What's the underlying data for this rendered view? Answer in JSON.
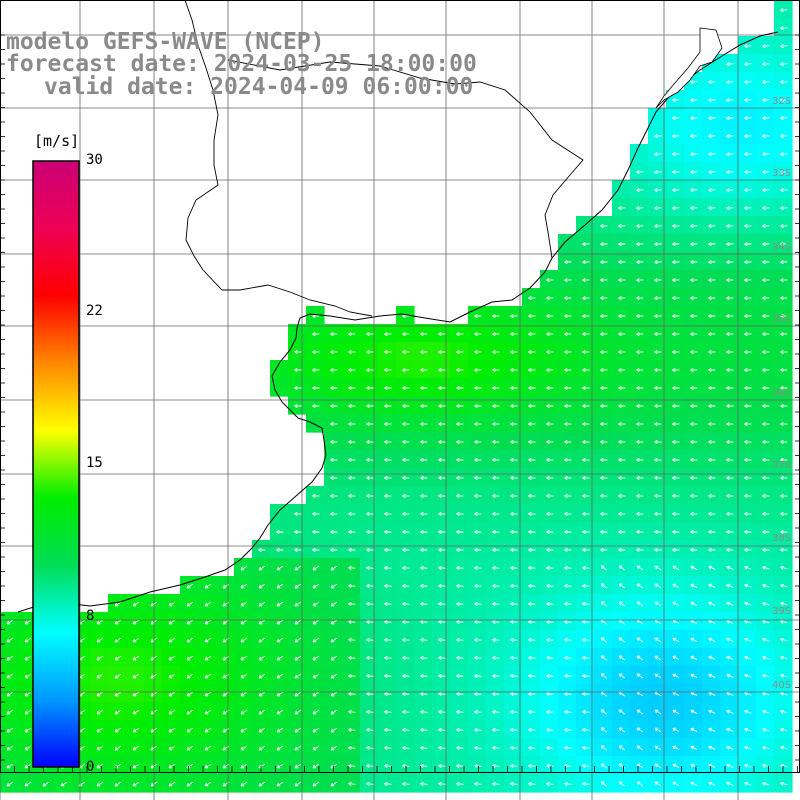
{
  "title": {
    "line1": "modelo GEFS-WAVE (NCEP)",
    "line2": "forecast date: 2024-03-25 18:00:00",
    "line3": "valid date: 2024-04-09 06:00:00"
  },
  "colorbar": {
    "units": "[m/s]",
    "ticks": [
      {
        "value": 30,
        "label": "30"
      },
      {
        "value": 22,
        "label": "22"
      },
      {
        "value": 15,
        "label": "15"
      },
      {
        "value": 8,
        "label": "8"
      },
      {
        "value": 0,
        "label": "0"
      }
    ],
    "stops": [
      "#0000ff",
      "#0099ff",
      "#00ffff",
      "#00dd55",
      "#00ee00",
      "#ffff00",
      "#ff8800",
      "#ff0000",
      "#ee0055",
      "#cc0077"
    ]
  },
  "lat_labels": [
    "32S",
    "33S",
    "34S",
    "35S",
    "36S",
    "37S",
    "38S",
    "39S",
    "40S"
  ],
  "colors": {
    "land": "#ffffff",
    "grid": "#666666",
    "coast": "#000000",
    "arrow": "#ffffff"
  }
}
